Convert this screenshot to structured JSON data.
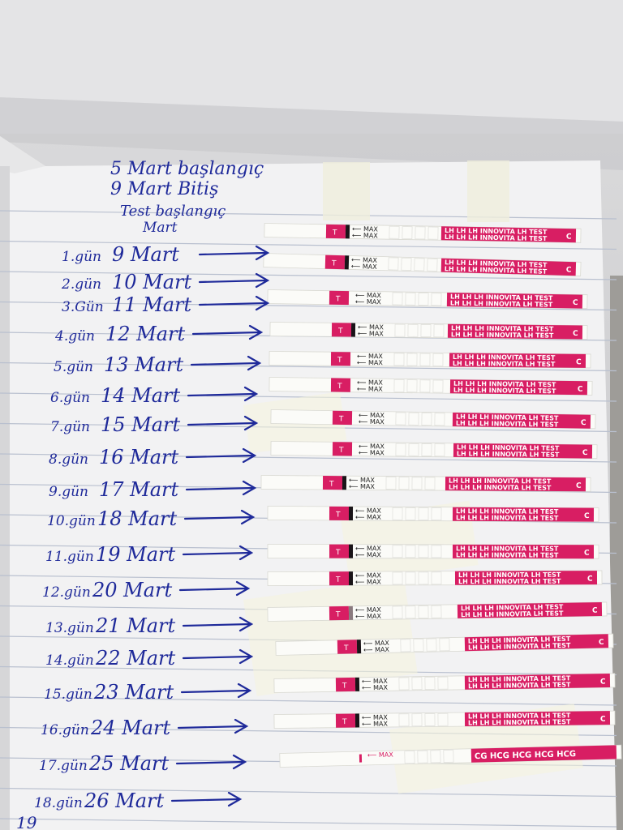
{
  "notebook": {
    "header_lines": [
      "5 Mart başlangıç",
      "9 Mart Bitiş",
      "Test başlangıç"
    ],
    "header_correction": "Mart",
    "rows": [
      {
        "day": "1.gün",
        "date": "9 Mart",
        "strip": "INNOVITA LH TEST",
        "lh_line": "dark"
      },
      {
        "day": "2.gün",
        "date": "10 Mart",
        "strip": "INNOVITA LH TEST",
        "lh_line": "dark"
      },
      {
        "day": "3.Gün",
        "date": "11 Mart",
        "strip": "INNOVITA LH TEST",
        "lh_line": "none"
      },
      {
        "day": "4.gün",
        "date": "12 Mart",
        "strip": "INNOVITA LH TEST",
        "lh_line": "dark"
      },
      {
        "day": "5.gün",
        "date": "13 Mart",
        "strip": "INNOVITA LH TEST",
        "lh_line": "none"
      },
      {
        "day": "6.gün",
        "date": "14 Mart",
        "strip": "INNOVITA LH TEST",
        "lh_line": "none"
      },
      {
        "day": "7.gün",
        "date": "15 Mart",
        "strip": "INNOVITA LH TEST",
        "lh_line": "none"
      },
      {
        "day": "8.gün",
        "date": "16 Mart",
        "strip": "INNOVITA LH TEST",
        "lh_line": "none"
      },
      {
        "day": "9.gün",
        "date": "17 Mart",
        "strip": "INNOVITA LH TEST",
        "lh_line": "dark"
      },
      {
        "day": "10.gün",
        "date": "18 Mart",
        "strip": "INNOVITA LH TEST",
        "lh_line": "dark"
      },
      {
        "day": "11.gün",
        "date": "19 Mart",
        "strip": "INNOVITA LH TEST",
        "lh_line": "dark"
      },
      {
        "day": "12.gün",
        "date": "20 Mart",
        "strip": "INNOVITA LH TEST",
        "lh_line": "dark"
      },
      {
        "day": "13.gün",
        "date": "21 Mart",
        "strip": "INNOVITA LH TEST",
        "lh_line": "faint"
      },
      {
        "day": "14.gün",
        "date": "22 Mart",
        "strip": "INNOVITA LH TEST",
        "lh_line": "dark"
      },
      {
        "day": "15.gün",
        "date": "23 Mart",
        "strip": "INNOVITA LH TEST",
        "lh_line": "dark"
      },
      {
        "day": "16.gün",
        "date": "24 Mart",
        "strip": "INNOVITA LH TEST",
        "lh_line": "dark"
      },
      {
        "day": "17.gün",
        "date": "25 Mart",
        "strip": "HCG",
        "lh_line": "none"
      },
      {
        "day": "18.gün",
        "date": "26 Mart",
        "strip": "",
        "lh_line": "none"
      }
    ],
    "footer_fragment": "19"
  },
  "strip_labels": {
    "t": "T",
    "c": "C",
    "max": "MAX",
    "lh": "LH",
    "brand": "INNOVITA",
    "test": "LH TEST",
    "hcg": "HCG",
    "cg": "CG"
  },
  "colors": {
    "ink": "#1f2a9a",
    "strip_pink": "#d81e63",
    "paper": "#f3f3f4",
    "rule": "#b9c0cf",
    "strip_white": "#fbfbf8",
    "tape": "rgba(246,244,220,0.55)"
  }
}
